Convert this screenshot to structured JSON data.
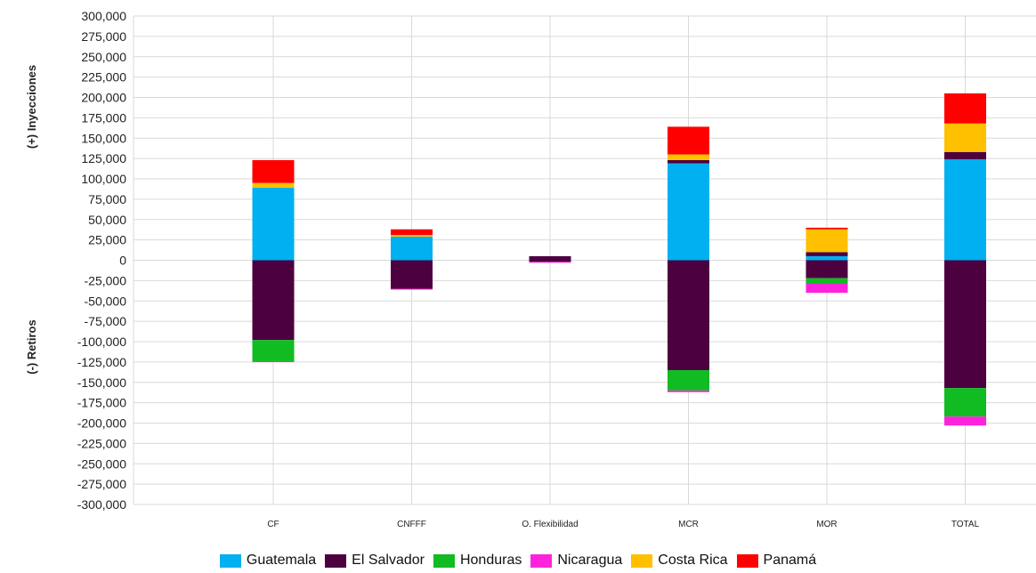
{
  "chart_data": {
    "type": "bar",
    "stacked": true,
    "categories": [
      "CF",
      "CNFFF",
      "O. Flexibilidad",
      "MCR",
      "MOR",
      "TOTAL"
    ],
    "yticks": [
      "300,000",
      "275,000",
      "250,000",
      "225,000",
      "200,000",
      "175,000",
      "150,000",
      "125,000",
      "100,000",
      "75,000",
      "50,000",
      "25,000",
      "0",
      "-25,000",
      "-50,000",
      "-75,000",
      "-100,000",
      "-125,000",
      "-150,000",
      "-175,000",
      "-200,000",
      "-225,000",
      "-250,000",
      "-275,000",
      "-300,000"
    ],
    "ylim": [
      -300000,
      300000
    ],
    "ylabel_top": "(+) Inyecciones",
    "ylabel_bottom": "(-) Retiros",
    "grid": true,
    "legend_position": "bottom",
    "positive_series": [
      {
        "name": "Guatemala",
        "color": "#00B0F0",
        "values": [
          89000,
          29000,
          0,
          119000,
          5000,
          124000
        ]
      },
      {
        "name": "El Salvador",
        "color": "#4D0040",
        "values": [
          0,
          0,
          5000,
          4000,
          5000,
          9000
        ]
      },
      {
        "name": "Honduras",
        "color": "#11BB22",
        "values": [
          0,
          0,
          0,
          0,
          0,
          0
        ]
      },
      {
        "name": "Nicaragua",
        "color": "#FF22DD",
        "values": [
          0,
          0,
          0,
          0,
          0,
          0
        ]
      },
      {
        "name": "Costa Rica",
        "color": "#FFC000",
        "values": [
          6000,
          2000,
          0,
          7000,
          28000,
          35000
        ]
      },
      {
        "name": "Panamá",
        "color": "#FF0000",
        "values": [
          28000,
          7000,
          0,
          34000,
          2000,
          37000
        ]
      }
    ],
    "negative_series": [
      {
        "name": "Guatemala",
        "color": "#00B0F0",
        "values": [
          0,
          0,
          0,
          0,
          0,
          0
        ]
      },
      {
        "name": "El Salvador",
        "color": "#4D0040",
        "values": [
          -98000,
          -35000,
          -2000,
          -135000,
          -22000,
          -157000
        ]
      },
      {
        "name": "Honduras",
        "color": "#11BB22",
        "values": [
          -26000,
          0,
          0,
          -25000,
          -7000,
          -35000
        ]
      },
      {
        "name": "Nicaragua",
        "color": "#FF22DD",
        "values": [
          -1000,
          -1000,
          -1000,
          -2000,
          -11000,
          -11000
        ]
      },
      {
        "name": "Costa Rica",
        "color": "#FFC000",
        "values": [
          0,
          0,
          0,
          0,
          0,
          0
        ]
      },
      {
        "name": "Panamá",
        "color": "#FF0000",
        "values": [
          0,
          0,
          0,
          0,
          0,
          0
        ]
      }
    ]
  },
  "legend": [
    {
      "name": "Guatemala",
      "color": "#00B0F0"
    },
    {
      "name": "El Salvador",
      "color": "#4D0040"
    },
    {
      "name": "Honduras",
      "color": "#11BB22"
    },
    {
      "name": "Nicaragua",
      "color": "#FF22DD"
    },
    {
      "name": "Costa Rica",
      "color": "#FFC000"
    },
    {
      "name": "Panamá",
      "color": "#FF0000"
    }
  ]
}
